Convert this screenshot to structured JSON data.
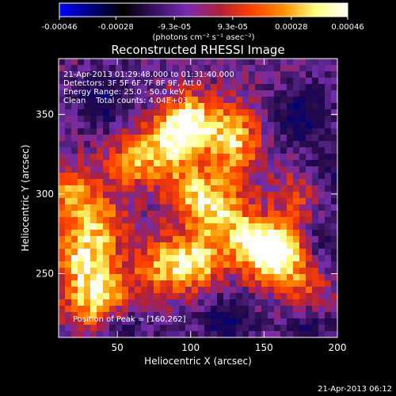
{
  "chart_data": {
    "type": "heatmap",
    "title": "Reconstructed RHESSI Image",
    "xlabel": "Heliocentric X (arcsec)",
    "ylabel": "Heliocentric Y (arcsec)",
    "xlim": [
      10,
      200
    ],
    "ylim": [
      210,
      385
    ],
    "x_ticks": [
      "50",
      "100",
      "150",
      "200"
    ],
    "y_ticks": [
      "250",
      "300",
      "350"
    ],
    "colorbar": {
      "ticks": [
        "-0.00046",
        "-0.00028",
        "-9.3e-05",
        "9.3e-05",
        "0.00028",
        "0.00046"
      ],
      "range": [
        -0.00046,
        0.00046
      ],
      "units_label": "(photons cm⁻² s⁻¹ asec⁻²)",
      "colormap": [
        "#0000ff",
        "#00007a",
        "#000000",
        "#3a1066",
        "#7a2bb0",
        "#b0203a",
        "#ff4000",
        "#ff9000",
        "#ffff80",
        "#ffffff"
      ]
    },
    "annotations": {
      "time_range": "21-Apr-2013 01:29:48.000 to 01:31:40.000",
      "detectors": "Detectors: 3F 5F 6F 7F 8F 9F, Att 0",
      "energy": "Energy Range: 25.0 - 50.0 keV",
      "clean": "Clean    Total counts: 4.04E+03",
      "peak": "Position of Peak = [160,262]"
    },
    "peak_position": [
      160,
      262
    ],
    "hot_regions": [
      {
        "x": 100,
        "y": 345,
        "intensity": 0.85
      },
      {
        "x": 85,
        "y": 330,
        "intensity": 0.65
      },
      {
        "x": 130,
        "y": 340,
        "intensity": 0.55
      },
      {
        "x": 60,
        "y": 320,
        "intensity": 0.55
      },
      {
        "x": 20,
        "y": 300,
        "intensity": 0.6
      },
      {
        "x": 25,
        "y": 260,
        "intensity": 0.7
      },
      {
        "x": 40,
        "y": 280,
        "intensity": 0.5
      },
      {
        "x": 100,
        "y": 300,
        "intensity": 0.6
      },
      {
        "x": 120,
        "y": 290,
        "intensity": 0.55
      },
      {
        "x": 105,
        "y": 258,
        "intensity": 0.75
      },
      {
        "x": 80,
        "y": 255,
        "intensity": 0.6
      },
      {
        "x": 140,
        "y": 270,
        "intensity": 0.7
      },
      {
        "x": 160,
        "y": 262,
        "intensity": 1.0
      },
      {
        "x": 175,
        "y": 300,
        "intensity": 0.45
      },
      {
        "x": 130,
        "y": 320,
        "intensity": 0.4
      },
      {
        "x": 45,
        "y": 240,
        "intensity": 0.55
      },
      {
        "x": 30,
        "y": 230,
        "intensity": 0.5
      },
      {
        "x": 180,
        "y": 240,
        "intensity": 0.35
      }
    ],
    "cold_regions": [
      {
        "x": 175,
        "y": 350,
        "intensity": -0.5
      },
      {
        "x": 190,
        "y": 310,
        "intensity": -0.35
      },
      {
        "x": 40,
        "y": 360,
        "intensity": -0.45
      },
      {
        "x": 55,
        "y": 215,
        "intensity": -0.3
      },
      {
        "x": 125,
        "y": 220,
        "intensity": -0.4
      },
      {
        "x": 180,
        "y": 215,
        "intensity": -0.35
      },
      {
        "x": 195,
        "y": 270,
        "intensity": -0.3
      }
    ]
  },
  "footer": {
    "timestamp": "21-Apr-2013 06:12"
  }
}
